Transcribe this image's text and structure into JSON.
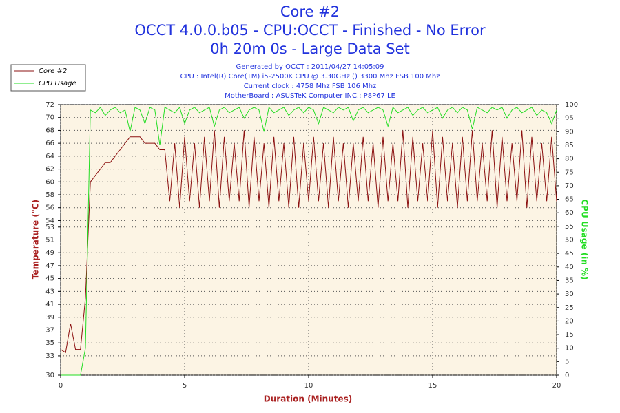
{
  "chart_data": {
    "type": "line",
    "title": "Core #2",
    "subtitle": [
      "OCCT 4.0.0.b05 - CPU:OCCT - Finished - No Error",
      "0h 20m 0s - Large Data Set"
    ],
    "info": [
      "Generated by OCCT : 2011/04/27 14:05:09",
      "CPU : Intel(R) Core(TM) i5-2500K CPU @ 3.30GHz () 3300 Mhz FSB 100 Mhz",
      "Current clock : 4758 Mhz FSB 106 Mhz",
      "MotherBoard : ASUSTeK Computer INC.: P8P67 LE"
    ],
    "xlabel": "Duration (Minutes)",
    "ylabel": "Temperature (°C)",
    "y2label": "CPU Usage (in %)",
    "legend": "top-left",
    "grid": true,
    "background": "#fcf4e4",
    "x": [
      0,
      0.2,
      0.4,
      0.6,
      0.8,
      1,
      1.2,
      1.4,
      1.6,
      1.8,
      2,
      2.2,
      2.4,
      2.6,
      2.8,
      3,
      3.2,
      3.4,
      3.6,
      3.8,
      4,
      4.2,
      4.4,
      4.6,
      4.8,
      5,
      5.2,
      5.4,
      5.6,
      5.8,
      6,
      6.2,
      6.4,
      6.6,
      6.8,
      7,
      7.2,
      7.4,
      7.6,
      7.8,
      8,
      8.2,
      8.4,
      8.6,
      8.8,
      9,
      9.2,
      9.4,
      9.6,
      9.8,
      10,
      10.2,
      10.4,
      10.6,
      10.8,
      11,
      11.2,
      11.4,
      11.6,
      11.8,
      12,
      12.2,
      12.4,
      12.6,
      12.8,
      13,
      13.2,
      13.4,
      13.6,
      13.8,
      14,
      14.2,
      14.4,
      14.6,
      14.8,
      15,
      15.2,
      15.4,
      15.6,
      15.8,
      16,
      16.2,
      16.4,
      16.6,
      16.8,
      17,
      17.2,
      17.4,
      17.6,
      17.8,
      18,
      18.2,
      18.4,
      18.6,
      18.8,
      19,
      19.2,
      19.4,
      19.6,
      19.8,
      20
    ],
    "series": [
      {
        "name": "Core #2",
        "color": "#8b1010",
        "axis": "y",
        "values": [
          34,
          33.5,
          38,
          34,
          34,
          42,
          60,
          61,
          62,
          63,
          63,
          64,
          65,
          66,
          67,
          67,
          67,
          66,
          66,
          66,
          65,
          65,
          57,
          66,
          56,
          67,
          57,
          66,
          56,
          67,
          57,
          68,
          56,
          67,
          57,
          66,
          57,
          68,
          56,
          67,
          57,
          66,
          56,
          67,
          57,
          66,
          56,
          67,
          56,
          66,
          57,
          67,
          57,
          66,
          56,
          67,
          57,
          66,
          56,
          66,
          57,
          67,
          57,
          66,
          56,
          67,
          57,
          66,
          57,
          68,
          56,
          67,
          57,
          66,
          57,
          68,
          56,
          67,
          57,
          66,
          56,
          67,
          57,
          68,
          57,
          66,
          57,
          68,
          56,
          67,
          57,
          66,
          57,
          68,
          56,
          67,
          57,
          66,
          57,
          67,
          57
        ]
      },
      {
        "name": "CPU Usage",
        "color": "#22dd22",
        "axis": "y2",
        "values": [
          0,
          0,
          0,
          0,
          0,
          10,
          98,
          97,
          99,
          96,
          98,
          99,
          97,
          98,
          90,
          99,
          98,
          93,
          99,
          98,
          85,
          99,
          98,
          97,
          99,
          93,
          98,
          99,
          97,
          98,
          99,
          92,
          98,
          99,
          97,
          98,
          99,
          95,
          98,
          99,
          98,
          90,
          99,
          97,
          98,
          99,
          96,
          98,
          99,
          97,
          99,
          98,
          93,
          99,
          98,
          97,
          99,
          98,
          99,
          94,
          98,
          99,
          97,
          98,
          99,
          98,
          92,
          99,
          97,
          98,
          99,
          96,
          98,
          99,
          97,
          98,
          99,
          95,
          98,
          99,
          97,
          99,
          98,
          91,
          99,
          98,
          97,
          99,
          98,
          99,
          95,
          98,
          99,
          97,
          98,
          99,
          96,
          98,
          97,
          93,
          98
        ]
      }
    ],
    "xlim": [
      0,
      20
    ],
    "xticks": [
      0,
      5,
      10,
      15,
      20
    ],
    "ylim": [
      30,
      72
    ],
    "yticks": [
      30,
      33,
      35,
      37,
      39,
      41,
      43,
      45,
      47,
      49,
      51,
      53,
      54,
      56,
      58,
      60,
      62,
      64,
      66,
      68,
      70,
      72
    ],
    "y2lim": [
      0,
      100
    ],
    "y2ticks": [
      0,
      5,
      10,
      15,
      20,
      25,
      30,
      35,
      40,
      45,
      50,
      55,
      60,
      65,
      70,
      75,
      80,
      85,
      90,
      95,
      100
    ]
  }
}
